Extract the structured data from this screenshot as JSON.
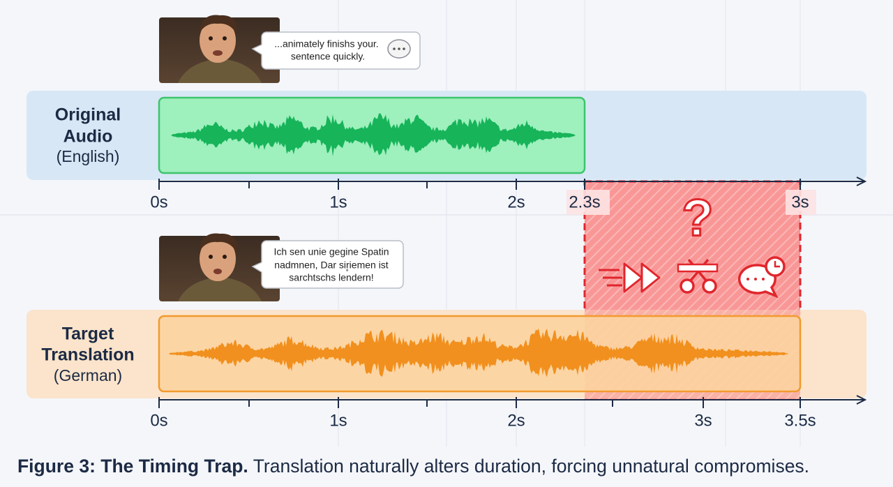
{
  "original": {
    "speech_bubble": [
      "...animately finishs your.",
      "sentence quickly."
    ],
    "row_label": [
      "Original",
      "Audio",
      "(English)"
    ],
    "axis_labels": [
      "0s",
      "1s",
      "2s",
      "2.3s",
      "3s"
    ]
  },
  "translation": {
    "speech_bubble": [
      "Ich sen unie gegine Spatin",
      "nadmnen, Dar sir̥iemen ist",
      "sarchtschs lendern!"
    ],
    "row_label": [
      "Target",
      "Translation",
      "(German)"
    ],
    "axis_labels": [
      "0s",
      "1s",
      "2s",
      "3s",
      "3.5s"
    ]
  },
  "overflow_zone": {
    "symbol": "?"
  },
  "caption": {
    "bold": "Figure 3: The Timing Trap.",
    "text": " Translation naturally alters duration, forcing unnatural compromises."
  }
}
